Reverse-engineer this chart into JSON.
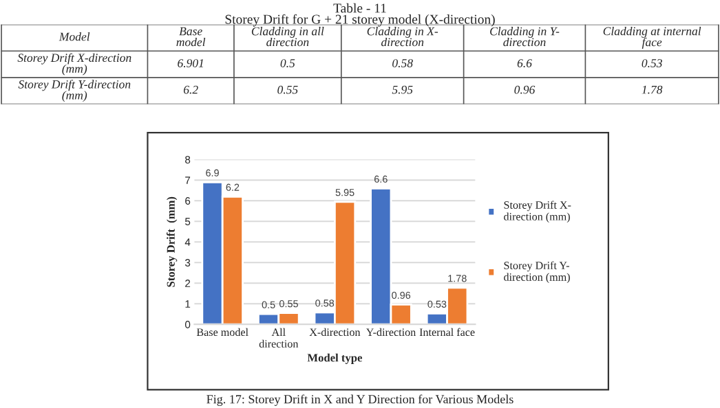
{
  "chart_data": [
    {
      "type": "other",
      "title": "Table - 11",
      "subtitle": "Storey Drift for G + 21 storey model (X-direction)",
      "annotations": [
        "Model",
        "Base\nmodel",
        "Cladding in all\ndirection",
        "Cladding in X-\ndirection",
        "Cladding in Y-\ndirection",
        "Cladding at internal\nface",
        "Storey Drift X-direction\n(mm)",
        "6.901",
        "0.5",
        "0.58",
        "6.6",
        "0.53",
        "Storey Drift Y-direction\n(mm)",
        "6.2",
        "0.55",
        "5.95",
        "0.96",
        "1.78"
      ]
    },
    {
      "type": "bar",
      "xlabel": "Model type",
      "ylabel": "Storey Drift  (mm)",
      "categories": [
        "Base model",
        "All\ndirection",
        "X-direction",
        "Y-direction",
        "Internal face"
      ],
      "series": [
        {
          "name": "Storey Drift X-\ndirection (mm)",
          "color": "#4472c4",
          "values": [
            6.9,
            0.5,
            0.58,
            6.6,
            0.53
          ]
        },
        {
          "name": "Storey Drift Y-\ndirection (mm)",
          "color": "#ed7d31",
          "values": [
            6.2,
            0.55,
            5.95,
            0.96,
            1.78
          ]
        }
      ],
      "ylim": [
        0,
        8
      ],
      "yticks": [
        0,
        1,
        2,
        3,
        4,
        5,
        6,
        7,
        8
      ],
      "grid": "y",
      "legend": "right",
      "data_labels": true,
      "annotations": [
        "Fig. 17: Storey Drift in X and Y Direction for Various Models"
      ]
    }
  ]
}
